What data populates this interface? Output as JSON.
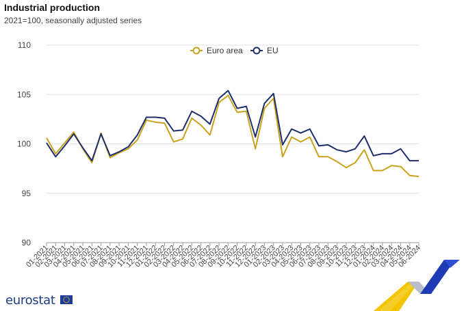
{
  "header": {
    "title": "Industrial production",
    "subtitle": "2021=100, seasonally adjusted series"
  },
  "brand": {
    "name": "eurostat",
    "flag_icon": "eu-flag-icon"
  },
  "colors": {
    "euro_area": "#c8a21d",
    "eu": "#1d2e6b",
    "grid": "#e3e3e3",
    "axis": "#9a9a9a"
  },
  "chart_data": {
    "type": "line",
    "title": "Industrial production",
    "subtitle": "2021=100, seasonally adjusted series",
    "xlabel": "",
    "ylabel": "",
    "ylim": [
      90,
      110
    ],
    "yticks": [
      90,
      95,
      100,
      105,
      110
    ],
    "grid": true,
    "legend_position": "top",
    "x": [
      "01-2021",
      "02-2021",
      "03-2021",
      "04-2021",
      "05-2021",
      "06-2021",
      "07-2021",
      "08-2021",
      "09-2021",
      "10-2021",
      "11-2021",
      "12-2021",
      "01-2022",
      "02-2022",
      "03-2022",
      "04-2022",
      "05-2022",
      "06-2022",
      "07-2022",
      "08-2022",
      "09-2022",
      "10-2022",
      "11-2022",
      "12-2022",
      "01-2023",
      "02-2023",
      "03-2023",
      "04-2023",
      "05-2023",
      "06-2023",
      "07-2023",
      "08-2023",
      "09-2023",
      "10-2023",
      "11-2023",
      "12-2023",
      "01-2024",
      "02-2024",
      "03-2024",
      "04-2024",
      "05-2024",
      "06-2024"
    ],
    "series": [
      {
        "name": "Euro area",
        "color": "#c8a21d",
        "values": [
          100.6,
          99.0,
          100.1,
          101.2,
          99.5,
          98.1,
          101.1,
          98.6,
          99.1,
          99.5,
          100.4,
          102.4,
          102.2,
          102.1,
          100.2,
          100.5,
          102.6,
          101.9,
          100.9,
          104.2,
          104.9,
          103.2,
          103.3,
          99.5,
          103.6,
          104.6,
          98.7,
          100.7,
          100.2,
          100.7,
          98.7,
          98.7,
          98.2,
          97.6,
          98.1,
          99.4,
          97.3,
          97.3,
          97.8,
          97.7,
          96.8,
          96.7
        ]
      },
      {
        "name": "EU",
        "color": "#1d2e6b",
        "values": [
          100.1,
          98.7,
          99.8,
          101.0,
          99.6,
          98.3,
          101.0,
          98.8,
          99.2,
          99.7,
          100.9,
          102.7,
          102.7,
          102.6,
          101.3,
          101.4,
          103.3,
          102.8,
          102.0,
          104.6,
          105.4,
          103.6,
          103.8,
          100.7,
          104.1,
          105.1,
          99.9,
          101.5,
          101.1,
          101.5,
          99.8,
          99.9,
          99.4,
          99.2,
          99.5,
          100.8,
          98.8,
          99.0,
          99.0,
          99.5,
          98.3,
          98.3
        ]
      }
    ]
  }
}
